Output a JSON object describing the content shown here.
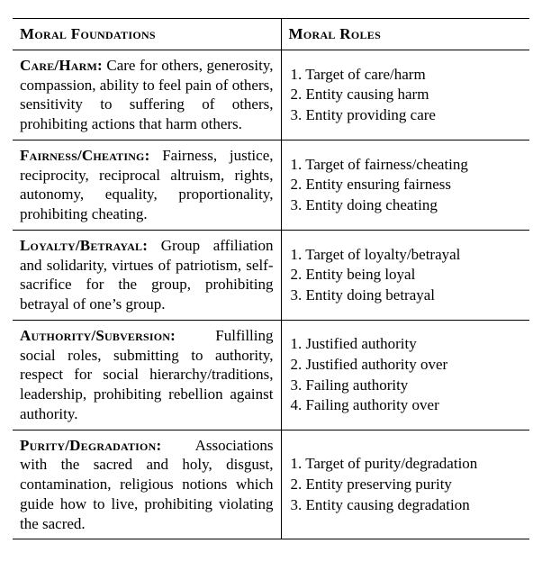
{
  "table": {
    "header": {
      "left": "Moral Foundations",
      "right": "Moral Roles"
    },
    "rows": [
      {
        "title": "Care/Harm:",
        "desc": "Care for others, gen­erosity, compassion, ability to feel pain of others, sensitivity to suffer­ing of others, prohibiting actions that harm others.",
        "roles": [
          "1. Target of care/harm",
          "2. Entity causing harm",
          "3. Entity providing care"
        ]
      },
      {
        "title": "Fairness/Cheating:",
        "desc": "Fairness, justice, reciprocity, reciprocal altru­ism, rights, autonomy, equality, pro­portionality, prohibiting cheating.",
        "roles": [
          "1. Target of fairness/cheating",
          "2. Entity ensuring fairness",
          "3. Entity doing cheating"
        ]
      },
      {
        "title": "Loyalty/Betrayal:",
        "desc": "Group af­filiation and solidarity, virtues of pa­triotism, self-sacrifice for the group, prohibiting betrayal of one’s group.",
        "roles": [
          "1. Target of loyalty/betrayal",
          "2. Entity being loyal",
          "3. Entity doing betrayal"
        ]
      },
      {
        "title": "Authority/Subversion:",
        "desc": "Ful­filling social roles, submitting to au­thority, respect for social hierarchy/­traditions, leadership, prohibiting re­bellion against authority.",
        "roles": [
          "1. Justified authority",
          "2. Justified authority over",
          "3. Failing authority",
          "4. Failing authority over"
        ]
      },
      {
        "title": "Purity/Degradation:",
        "desc": "Associ­ations with the sacred and holy, dis­gust, contamination, religious no­tions which guide how to live, pro­hibiting violating the sacred.",
        "roles": [
          "1. Target of purity/degradation",
          "2. Entity preserving purity",
          "3. Entity causing degradation"
        ]
      }
    ]
  }
}
